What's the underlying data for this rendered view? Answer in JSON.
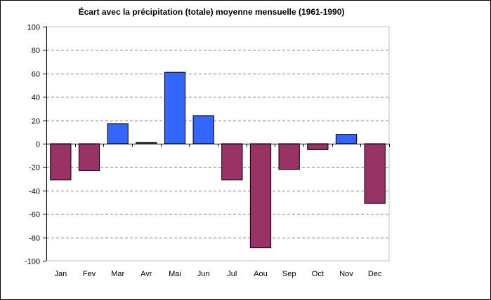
{
  "chart_data": {
    "type": "bar",
    "title": "Écart avec la précipitation (totale) moyenne mensuelle (1961-1990)",
    "xlabel": "",
    "ylabel": "",
    "categories": [
      "Jan",
      "Fev",
      "Mar",
      "Avr",
      "Mai",
      "Jun",
      "Jul",
      "Aou",
      "Sep",
      "Oct",
      "Nov",
      "Dec"
    ],
    "values": [
      -31,
      -23,
      17,
      1,
      61,
      24,
      -31,
      -89,
      -22,
      -5,
      8,
      -51
    ],
    "ylim": [
      -100,
      100
    ],
    "yticks": [
      "100",
      "80",
      "60",
      "40",
      "20",
      "0",
      "-20",
      "-40",
      "-60",
      "-80",
      "-100"
    ],
    "grid": true,
    "legend": "none",
    "colors": {
      "positive": "#3366ff",
      "negative": "#993366",
      "grid": "#808080",
      "axis": "#000000",
      "plot_border": "#c0c0c0"
    }
  }
}
